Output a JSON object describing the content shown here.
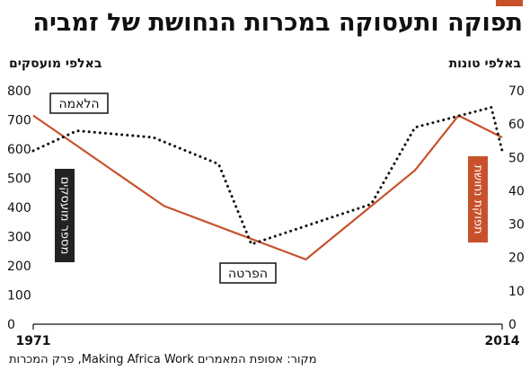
{
  "title": "תפוקה ותעסוקה במכרות הנחושת של זמביה",
  "source": "מקור: אסופת המאמרים Making Africa Work, פרק המכרות",
  "colors": {
    "accent": "#c8512c",
    "employment": "#111111",
    "label_dark": "#222222"
  },
  "chart_data": {
    "type": "line",
    "x": [
      1971,
      1980,
      1992,
      2002,
      2008,
      2010,
      2014
    ],
    "x_ticks": [
      "1971",
      "2014"
    ],
    "xlim": [
      1971,
      2014
    ],
    "axes": {
      "left": {
        "unit": "באלפי טונות",
        "ylim": [
          0,
          800
        ],
        "ticks": [
          "0",
          "100",
          "200",
          "300",
          "400",
          "500",
          "600",
          "700",
          "800"
        ]
      },
      "right": {
        "unit": "באלפי מועסקים",
        "ylim": [
          0,
          70
        ],
        "ticks": [
          "0",
          "10",
          "20",
          "30",
          "40",
          "50",
          "60",
          "70"
        ]
      }
    },
    "series": [
      {
        "name": "תפוקת נחושת",
        "axis": "left",
        "style": "solid",
        "color": "#c8512c",
        "x": [
          1971,
          1983,
          1996,
          2006,
          2010,
          2014
        ],
        "values": [
          715,
          405,
          222,
          527,
          715,
          640
        ]
      },
      {
        "name": "מספר מועסקים",
        "axis": "right",
        "style": "dotted",
        "color": "#111111",
        "x": [
          1971,
          1975,
          1982,
          1988,
          1991,
          2002,
          2006,
          2013,
          2014
        ],
        "values": [
          52,
          58,
          56,
          48,
          24,
          36,
          59,
          65,
          52
        ]
      }
    ],
    "annotations": [
      {
        "text": "הלאמה"
      },
      {
        "text": "הפרטה"
      }
    ],
    "grid": false
  }
}
